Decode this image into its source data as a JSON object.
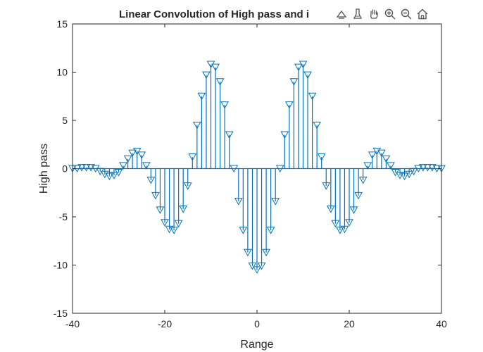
{
  "chart_data": {
    "type": "stem",
    "title": "Linear Convolution of High pass and i",
    "xlabel": "Range",
    "ylabel": "High pass",
    "xlim": [
      -40,
      40
    ],
    "ylim": [
      -15,
      15
    ],
    "xticks": [
      "-40",
      "-20",
      "0",
      "20",
      "40"
    ],
    "yticks": [
      "-15",
      "-10",
      "-5",
      "0",
      "5",
      "10",
      "15"
    ],
    "marker": "triangle-down",
    "color": "#0072BD",
    "grid": false,
    "x": [
      -40,
      -39,
      -38,
      -37,
      -36,
      -35,
      -34,
      -33,
      -32,
      -31,
      -30,
      -29,
      -28,
      -27,
      -26,
      -25,
      -24,
      -23,
      -22,
      -21,
      -20,
      -19,
      -18,
      -17,
      -16,
      -15,
      -14,
      -13,
      -12,
      -11,
      -10,
      -9,
      -8,
      -7,
      -6,
      -5,
      -4,
      -3,
      -2,
      -1,
      0,
      1,
      2,
      3,
      4,
      5,
      6,
      7,
      8,
      9,
      10,
      11,
      12,
      13,
      14,
      15,
      16,
      17,
      18,
      19,
      20,
      21,
      22,
      23,
      24,
      25,
      26,
      27,
      28,
      29,
      30,
      31,
      32,
      33,
      34,
      35,
      36,
      37,
      38,
      39,
      40
    ],
    "y": [
      0,
      0,
      0.1,
      0.1,
      0.1,
      0,
      -0.3,
      -0.6,
      -0.8,
      -0.7,
      -0.4,
      0.3,
      1.0,
      1.6,
      1.8,
      1.4,
      0.3,
      -1.2,
      -2.8,
      -4.3,
      -5.6,
      -6.3,
      -6.4,
      -5.7,
      -4.2,
      -1.8,
      1.2,
      4.5,
      7.5,
      9.7,
      10.8,
      10.5,
      9.0,
      6.6,
      3.5,
      0,
      -3.4,
      -6.4,
      -8.7,
      -10.1,
      -10.5,
      -10.1,
      -8.7,
      -6.4,
      -3.4,
      0,
      3.5,
      6.6,
      9.0,
      10.5,
      10.8,
      9.7,
      7.5,
      4.5,
      1.2,
      -1.8,
      -4.2,
      -5.7,
      -6.4,
      -6.3,
      -5.6,
      -4.3,
      -2.8,
      -1.2,
      0.3,
      1.4,
      1.8,
      1.6,
      1.0,
      0.3,
      -0.4,
      -0.7,
      -0.8,
      -0.6,
      -0.3,
      0,
      0.1,
      0.1,
      0.1,
      0,
      0
    ]
  },
  "toolbar": {
    "buttons": [
      "export-icon",
      "brush-icon",
      "pan-hand-icon",
      "zoom-in-icon",
      "zoom-out-icon",
      "home-icon"
    ]
  }
}
